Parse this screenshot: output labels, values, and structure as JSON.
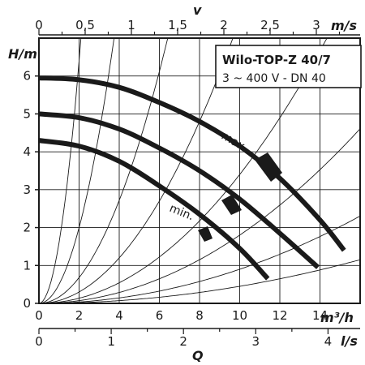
{
  "chart_data": {
    "type": "line",
    "title": "Wilo-TOP-Z 40/7",
    "subtitle": "3 ~ 400 V - DN 40",
    "ylabel": "H/m",
    "xlabel_m3h": "m³/h",
    "xlabel_ls": "l/s",
    "xlabel_ms": "m/s",
    "axis_letter_q": "Q",
    "axis_letter_v": "v",
    "ylim": [
      0,
      7
    ],
    "xlim_m3h": [
      0,
      16
    ],
    "y_ticks": [
      "0",
      "1",
      "2",
      "3",
      "4",
      "5",
      "6"
    ],
    "x_ticks_m3h": [
      "0",
      "2",
      "4",
      "6",
      "8",
      "10",
      "12",
      "14"
    ],
    "x_ticks_ls": [
      "0",
      "1",
      "2",
      "3",
      "4"
    ],
    "x_ticks_ms": [
      "0",
      "0,5",
      "1",
      "1,5",
      "2",
      "2,5",
      "3"
    ],
    "labels": {
      "max": "max.",
      "min": "min."
    },
    "series": [
      {
        "x": [
          0,
          2,
          4,
          6,
          8,
          10,
          12,
          14,
          15.2
        ],
        "values": [
          5.95,
          5.9,
          5.7,
          5.3,
          4.8,
          4.15,
          3.3,
          2.2,
          1.4
        ]
      },
      {
        "x": [
          0,
          2,
          4,
          6,
          8,
          10,
          12,
          13.9
        ],
        "values": [
          5.0,
          4.9,
          4.6,
          4.1,
          3.5,
          2.75,
          1.85,
          0.95
        ]
      },
      {
        "x": [
          0,
          2,
          4,
          6,
          8,
          10,
          11.4
        ],
        "values": [
          4.3,
          4.15,
          3.75,
          3.1,
          2.35,
          1.45,
          0.65
        ]
      }
    ]
  }
}
